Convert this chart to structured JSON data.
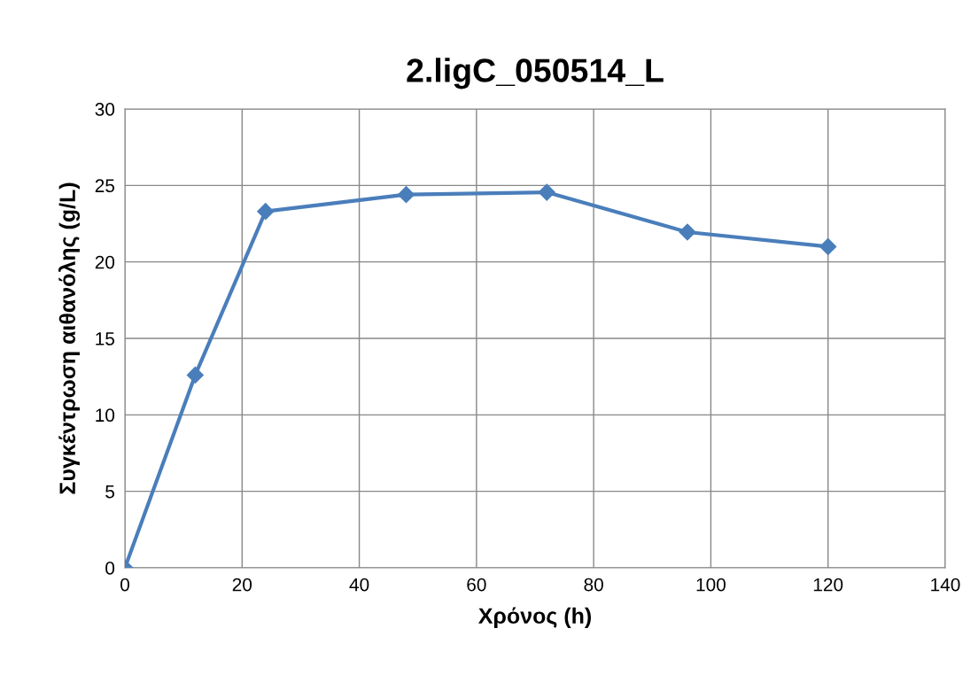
{
  "chart_data": {
    "type": "line",
    "title": "2.ligC_050514_L",
    "xlabel": "Χρόνος (h)",
    "ylabel": "Συγκέντρωση αιθανόλης (g/L)",
    "x": [
      0,
      12,
      24,
      48,
      72,
      96,
      120
    ],
    "series": [
      {
        "color": "#4a7ebb",
        "values": [
          0,
          12.6,
          23.3,
          24.4,
          24.55,
          21.95,
          21.0
        ]
      }
    ],
    "xlim": [
      0,
      140
    ],
    "xticks": [
      0,
      20,
      40,
      60,
      80,
      100,
      120,
      140
    ],
    "ylim": [
      0,
      30
    ],
    "yticks": [
      0,
      5,
      10,
      15,
      20,
      25,
      30
    ],
    "grid": true,
    "marker": "diamond",
    "line_style": "solid",
    "legend": false
  }
}
